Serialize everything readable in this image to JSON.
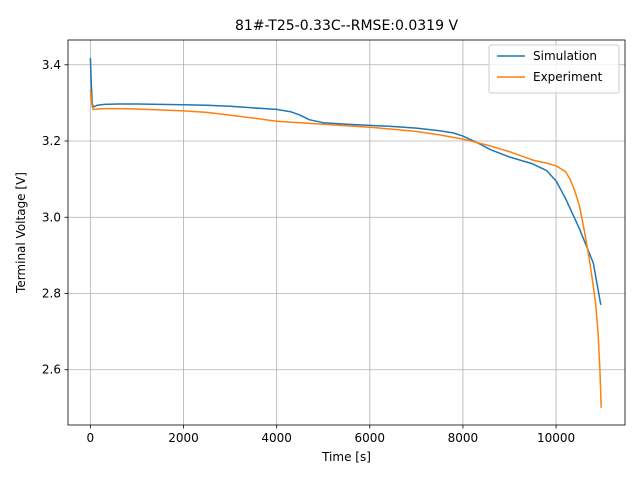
{
  "chart_data": {
    "type": "line",
    "title": "81#-T25-0.33C--RMSE:0.0319 V",
    "xlabel": "Time [s]",
    "ylabel": "Terminal Voltage [V]",
    "xlim": [
      -480,
      11480
    ],
    "ylim": [
      2.455,
      3.465
    ],
    "xticks": [
      0,
      2000,
      4000,
      6000,
      8000,
      10000
    ],
    "yticks": [
      2.6,
      2.8,
      3.0,
      3.2,
      3.4
    ],
    "xtick_labels": [
      "0",
      "2000",
      "4000",
      "6000",
      "8000",
      "10000"
    ],
    "ytick_labels": [
      "2.6",
      "2.8",
      "3.0",
      "3.2",
      "3.4"
    ],
    "grid": true,
    "legend_position": "upper right",
    "series": [
      {
        "name": "Simulation",
        "color": "#1f77b4",
        "x": [
          0,
          20,
          40,
          60,
          80,
          150,
          300,
          600,
          1000,
          2000,
          2500,
          3000,
          3500,
          4000,
          4300,
          4500,
          4700,
          5000,
          5500,
          6000,
          6500,
          7000,
          7500,
          7800,
          8000,
          8300,
          8600,
          9000,
          9500,
          9800,
          10000,
          10200,
          10500,
          10800,
          10960
        ],
        "y": [
          3.418,
          3.35,
          3.3,
          3.29,
          3.29,
          3.294,
          3.296,
          3.297,
          3.297,
          3.295,
          3.294,
          3.291,
          3.287,
          3.283,
          3.277,
          3.268,
          3.256,
          3.248,
          3.244,
          3.241,
          3.238,
          3.234,
          3.227,
          3.221,
          3.213,
          3.196,
          3.177,
          3.158,
          3.14,
          3.122,
          3.095,
          3.05,
          2.97,
          2.88,
          2.77
        ]
      },
      {
        "name": "Experiment",
        "color": "#ff7f0e",
        "x": [
          0,
          20,
          40,
          60,
          80,
          150,
          300,
          600,
          1000,
          2000,
          2500,
          3000,
          3500,
          4000,
          4500,
          5000,
          5500,
          6000,
          6500,
          7000,
          7500,
          8000,
          8500,
          9000,
          9500,
          9800,
          10000,
          10200,
          10300,
          10400,
          10500,
          10600,
          10700,
          10800,
          10850,
          10900,
          10940,
          10970
        ],
        "y": [
          3.335,
          3.31,
          3.29,
          3.283,
          3.283,
          3.284,
          3.285,
          3.285,
          3.284,
          3.279,
          3.275,
          3.268,
          3.26,
          3.252,
          3.248,
          3.244,
          3.24,
          3.236,
          3.231,
          3.225,
          3.216,
          3.205,
          3.19,
          3.172,
          3.15,
          3.142,
          3.135,
          3.12,
          3.1,
          3.07,
          3.03,
          2.97,
          2.9,
          2.82,
          2.77,
          2.7,
          2.6,
          2.5
        ]
      }
    ]
  }
}
